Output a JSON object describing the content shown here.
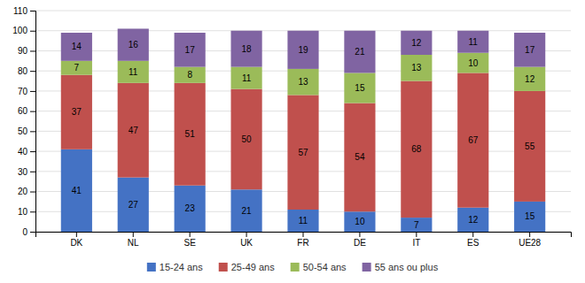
{
  "chart_data": {
    "type": "bar",
    "stacked": true,
    "data_labels": true,
    "grid": true,
    "legend": "bottom",
    "categories": [
      "DK",
      "NL",
      "SE",
      "UK",
      "FR",
      "DE",
      "IT",
      "ES",
      "UE28"
    ],
    "series": [
      {
        "name": "15-24 ans",
        "color": "#4472C4",
        "values": [
          41,
          27,
          23,
          21,
          11,
          10,
          7,
          12,
          15
        ]
      },
      {
        "name": "25-49 ans",
        "color": "#C0504D",
        "values": [
          37,
          47,
          51,
          50,
          57,
          54,
          68,
          67,
          55
        ]
      },
      {
        "name": "50-54 ans",
        "color": "#9BBB59",
        "values": [
          7,
          11,
          8,
          11,
          13,
          15,
          13,
          10,
          12
        ]
      },
      {
        "name": "55 ans ou plus",
        "color": "#8064A2",
        "values": [
          14,
          16,
          17,
          18,
          19,
          21,
          12,
          11,
          17
        ]
      }
    ],
    "ylim": [
      0,
      110
    ],
    "yticks": [
      0,
      10,
      20,
      30,
      40,
      50,
      60,
      70,
      80,
      90,
      100,
      110
    ]
  }
}
